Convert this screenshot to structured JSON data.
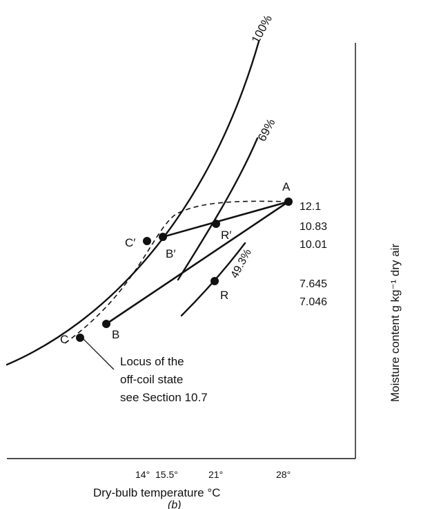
{
  "chart_data": {
    "type": "psychrometric-diagram",
    "caption": "(b)",
    "xlabel": "Dry-bulb temperature °C",
    "ylabel": "Moisture content g kg⁻¹ dry air",
    "x_ticks": [
      {
        "value": 14,
        "label": "14°"
      },
      {
        "value": 15.5,
        "label": "15.5°"
      },
      {
        "value": 21,
        "label": "21°"
      },
      {
        "value": 28,
        "label": "28°"
      }
    ],
    "y_ticks": [
      {
        "value": 12.1,
        "label": "12.1"
      },
      {
        "value": 10.83,
        "label": "10.83"
      },
      {
        "value": 10.01,
        "label": "10.01"
      },
      {
        "value": 7.645,
        "label": "7.645"
      },
      {
        "value": 7.046,
        "label": "7.046"
      }
    ],
    "curves": [
      {
        "name": "100%"
      },
      {
        "name": "69%"
      },
      {
        "name": "49.3%"
      }
    ],
    "points": [
      {
        "label": "A",
        "x": 28,
        "y": 12.1
      },
      {
        "label": "B′",
        "x": 15.5,
        "y": 10.83
      },
      {
        "label": "R′",
        "x": 21,
        "y": 10.83
      },
      {
        "label": "C′",
        "x": 14,
        "y": 10.01
      },
      {
        "label": "R",
        "x": 21,
        "y": 7.645
      },
      {
        "label": "B",
        "x": 10.3,
        "y": 7.046
      },
      {
        "label": "C",
        "x": 8.1,
        "y": 6.6
      }
    ],
    "annotation": [
      "Locus of the",
      "off-coil state",
      "see Section 10.7"
    ]
  }
}
